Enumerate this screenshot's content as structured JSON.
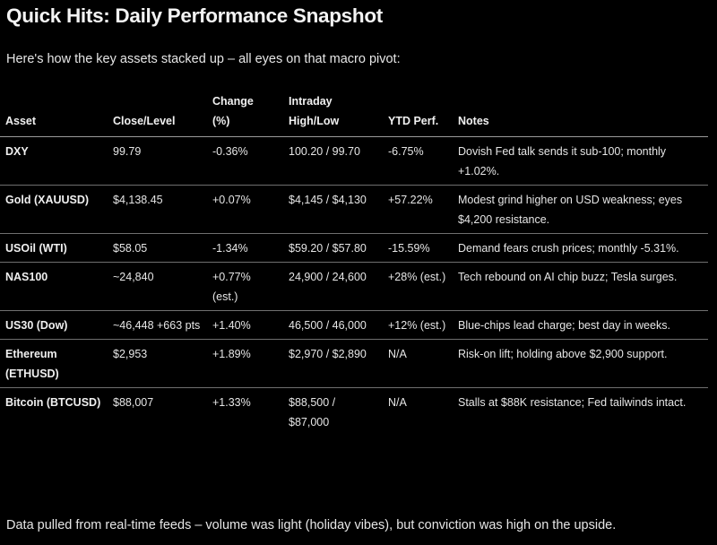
{
  "title": "Quick Hits: Daily Performance Snapshot",
  "intro": "Here's how the key assets stacked up – all eyes on that macro pivot:",
  "table": {
    "headers": {
      "asset": "Asset",
      "close": "Close/Level",
      "change_line1": "Change",
      "change_line2": "(%)",
      "range_line1": "Intraday",
      "range_line2": "High/Low",
      "ytd": "YTD Perf.",
      "notes": "Notes"
    },
    "rows": [
      {
        "asset": "DXY",
        "close": "99.79",
        "change": "-0.36%",
        "range": "100.20 / 99.70",
        "ytd": "-6.75%",
        "notes": "Dovish Fed talk sends it sub-100; monthly +1.02%."
      },
      {
        "asset": "Gold (XAUUSD)",
        "close": "$4,138.45",
        "change": "+0.07%",
        "range": "$4,145 / $4,130",
        "ytd": "+57.22%",
        "notes": "Modest grind higher on USD weakness; eyes $4,200 resistance."
      },
      {
        "asset": "USOil (WTI)",
        "close": "$58.05",
        "change": "-1.34%",
        "range": "$59.20 / $57.80",
        "ytd": "-15.59%",
        "notes": "Demand fears crush prices; monthly -5.31%."
      },
      {
        "asset": "NAS100",
        "close": "~24,840",
        "change": "+0.77% (est.)",
        "range": "24,900 / 24,600",
        "ytd": "+28% (est.)",
        "notes": "Tech rebound on AI chip buzz; Tesla surges."
      },
      {
        "asset": "US30 (Dow)",
        "close": "~46,448 +663 pts",
        "change": "+1.40%",
        "range": "46,500 / 46,000",
        "ytd": "+12% (est.)",
        "notes": "Blue-chips lead charge; best day in weeks."
      },
      {
        "asset": "Ethereum (ETHUSD)",
        "close": "$2,953",
        "change": "+1.89%",
        "range": "$2,970 / $2,890",
        "ytd": "N/A",
        "notes": "Risk-on lift; holding above $2,900 support."
      },
      {
        "asset": "Bitcoin (BTCUSD)",
        "close": "$88,007",
        "change": "+1.33%",
        "range": "$88,500 / $87,000",
        "ytd": "N/A",
        "notes": "Stalls at $88K resistance; Fed tailwinds intact."
      }
    ]
  },
  "footer": "Data pulled from real-time feeds – volume was light (holiday vibes), but conviction was high on the upside."
}
